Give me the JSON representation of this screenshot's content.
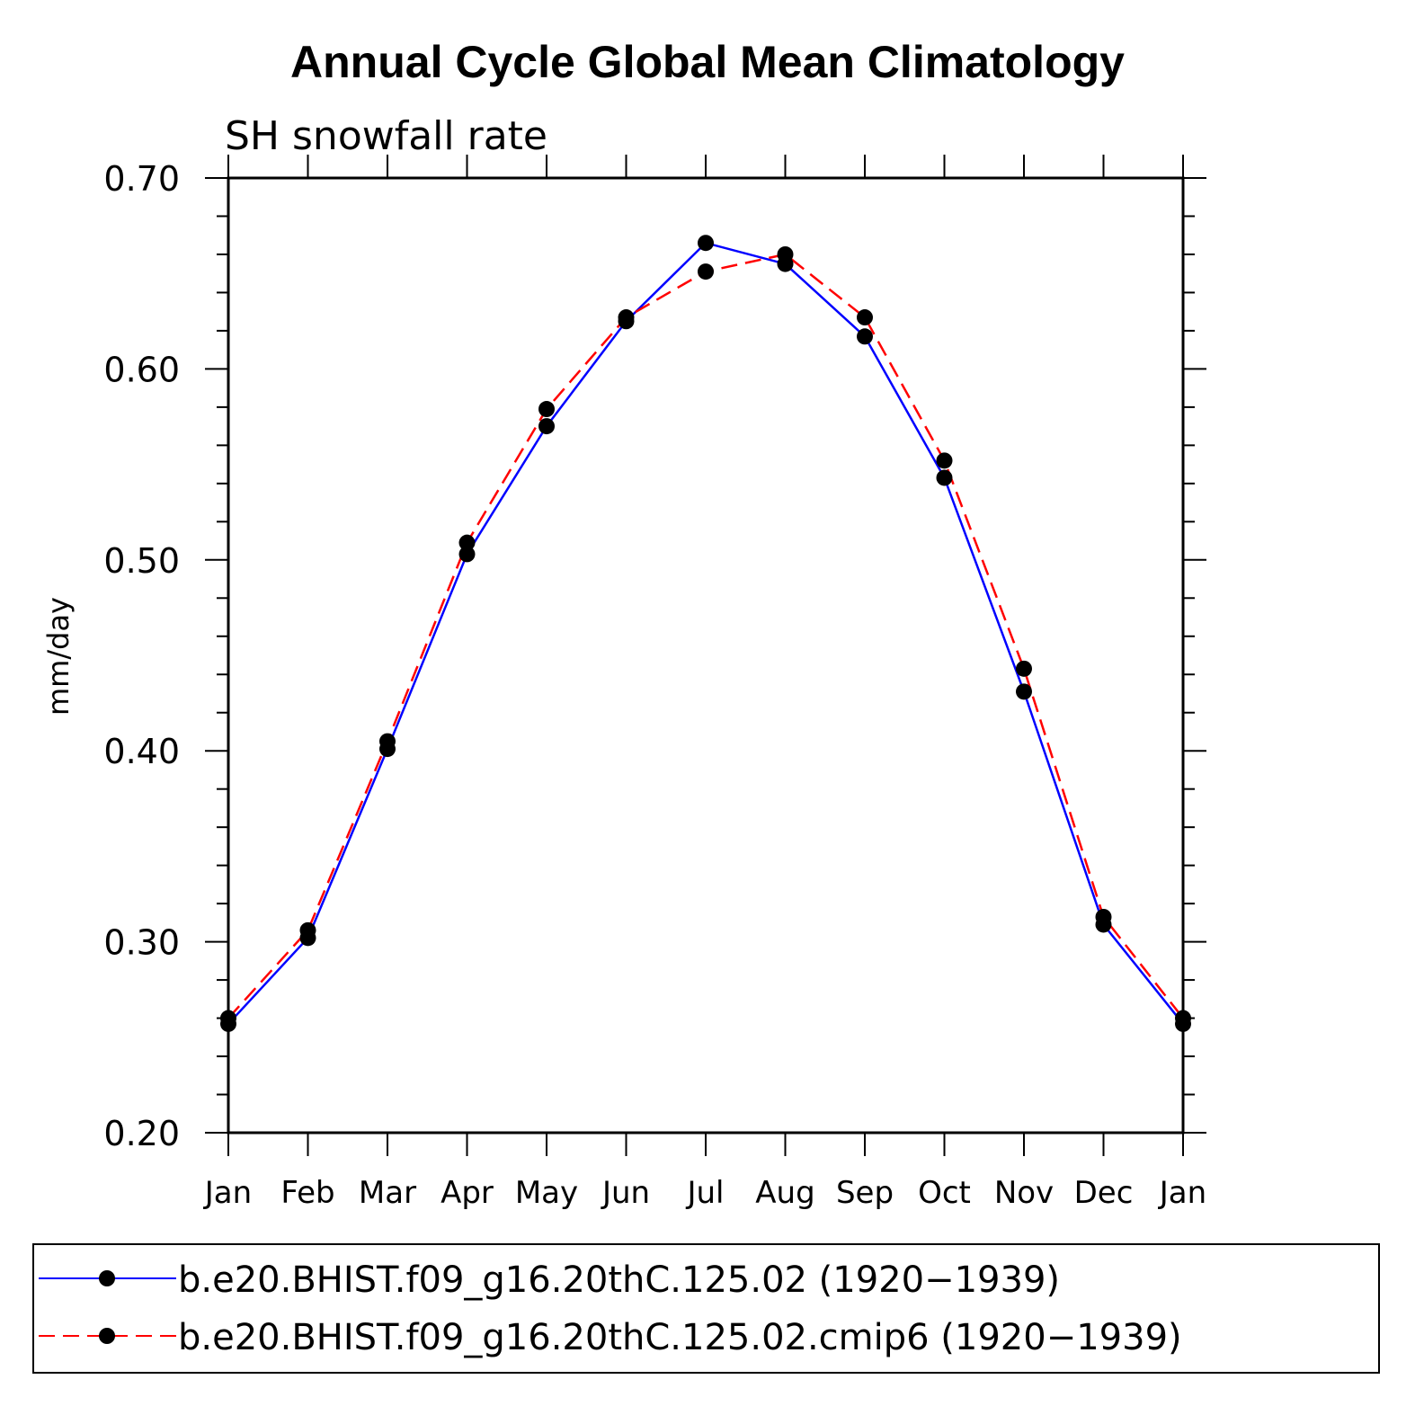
{
  "chart_data": {
    "type": "line",
    "title": "Annual Cycle Global Mean Climatology",
    "subtitle": "SH snowfall rate",
    "ylabel": "mm/day",
    "xlabel": "",
    "ylim": [
      0.2,
      0.7
    ],
    "y_ticks": [
      "0.20",
      "0.30",
      "0.40",
      "0.50",
      "0.60",
      "0.70"
    ],
    "categories": [
      "Jan",
      "Feb",
      "Mar",
      "Apr",
      "May",
      "Jun",
      "Jul",
      "Aug",
      "Sep",
      "Oct",
      "Nov",
      "Dec",
      "Jan"
    ],
    "series": [
      {
        "name": "b.e20.BHIST.f09_g16.20thC.125.02 (1920−1939)",
        "color": "#0000ff",
        "dash": "solid",
        "values": [
          0.257,
          0.302,
          0.401,
          0.503,
          0.57,
          0.625,
          0.666,
          0.655,
          0.617,
          0.543,
          0.431,
          0.309,
          0.257
        ]
      },
      {
        "name": "b.e20.BHIST.f09_g16.20thC.125.02.cmip6 (1920−1939)",
        "color": "#ff0000",
        "dash": "dashed",
        "values": [
          0.26,
          0.306,
          0.405,
          0.509,
          0.579,
          0.627,
          0.651,
          0.66,
          0.627,
          0.552,
          0.443,
          0.313,
          0.26
        ]
      }
    ]
  }
}
